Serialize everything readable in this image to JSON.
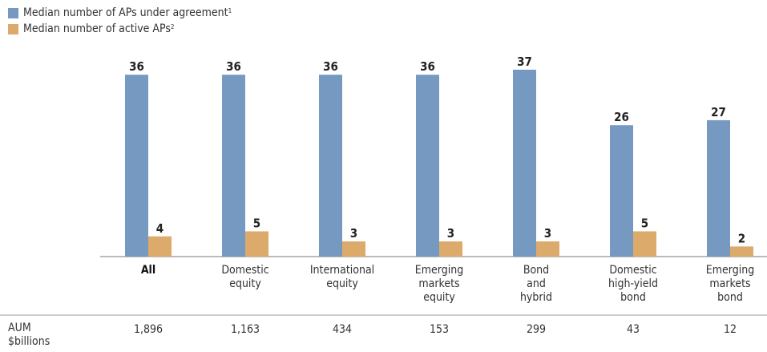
{
  "colors": {
    "agreement": "#7599c0",
    "active": "#dcaa6a",
    "text": "#222222",
    "axis": "#777777"
  },
  "legend": {
    "agreement_label": "Median number of APs under agreement",
    "agreement_sup": "1",
    "active_label": "Median number of active APs",
    "active_sup": "2"
  },
  "aum_label": {
    "line1": "AUM",
    "line2": "$billions"
  },
  "chart_data": {
    "type": "bar",
    "categories": [
      [
        "All"
      ],
      [
        "Domestic",
        "equity"
      ],
      [
        "International",
        "equity"
      ],
      [
        "Emerging",
        "markets",
        "equity"
      ],
      [
        "Bond",
        "and",
        "hybrid"
      ],
      [
        "Domestic",
        "high-yield",
        "bond"
      ],
      [
        "Emerging",
        "markets",
        "bond"
      ]
    ],
    "series": [
      {
        "name": "Median number of APs under agreement",
        "key": "agreement",
        "values": [
          36,
          36,
          36,
          36,
          37,
          26,
          27
        ]
      },
      {
        "name": "Median number of active APs",
        "key": "active",
        "values": [
          4,
          5,
          3,
          3,
          3,
          5,
          2
        ]
      }
    ],
    "aum": [
      "1,896",
      "1,163",
      "434",
      "153",
      "299",
      "43",
      "12"
    ],
    "ylim": [
      0,
      40
    ]
  }
}
